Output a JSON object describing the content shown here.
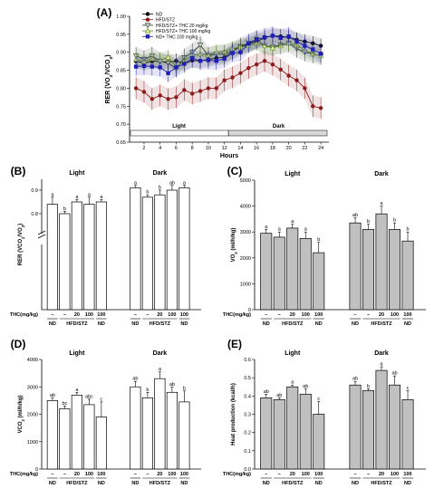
{
  "chart_data": [
    {
      "panel": "(A)",
      "type": "line",
      "xlabel": "Hours",
      "ylabel": "RER (VO2/VCO2)",
      "ylim": [
        0.65,
        1.0
      ],
      "yticks": [
        "0.65",
        "0.70",
        "0.75",
        "0.80",
        "0.85",
        "0.90",
        "0.95",
        "1.00"
      ],
      "xticks": [
        2,
        4,
        6,
        8,
        10,
        12,
        14,
        16,
        18,
        20,
        22,
        24
      ],
      "x": [
        1,
        2,
        3,
        4,
        5,
        6,
        7,
        8,
        9,
        10,
        11,
        12,
        13,
        14,
        15,
        16,
        17,
        18,
        19,
        20,
        21,
        22,
        23,
        24
      ],
      "bands": {
        "light": "Light",
        "dark": "Dark"
      },
      "legend_position": "top-left",
      "series": [
        {
          "name": "ND",
          "color": "#000000",
          "marker": "circle",
          "values": [
            0.875,
            0.87,
            0.875,
            0.875,
            0.872,
            0.876,
            0.868,
            0.877,
            0.876,
            0.88,
            0.884,
            0.886,
            0.902,
            0.916,
            0.922,
            0.93,
            0.94,
            0.946,
            0.944,
            0.942,
            0.935,
            0.93,
            0.925,
            0.918
          ],
          "errors": [
            0.02,
            0.02,
            0.02,
            0.02,
            0.02,
            0.02,
            0.02,
            0.02,
            0.02,
            0.02,
            0.02,
            0.02,
            0.02,
            0.02,
            0.02,
            0.02,
            0.02,
            0.02,
            0.02,
            0.02,
            0.02,
            0.02,
            0.02,
            0.02
          ]
        },
        {
          "name": "HFD/STZ",
          "color": "#8b1a1a",
          "marker": "circle",
          "values": [
            0.8,
            0.79,
            0.77,
            0.78,
            0.77,
            0.775,
            0.795,
            0.785,
            0.792,
            0.8,
            0.8,
            0.822,
            0.83,
            0.842,
            0.856,
            0.866,
            0.876,
            0.866,
            0.852,
            0.835,
            0.822,
            0.8,
            0.75,
            0.745
          ],
          "errors": [
            0.03,
            0.03,
            0.03,
            0.03,
            0.03,
            0.03,
            0.03,
            0.03,
            0.03,
            0.03,
            0.03,
            0.03,
            0.03,
            0.03,
            0.03,
            0.03,
            0.03,
            0.03,
            0.03,
            0.03,
            0.03,
            0.03,
            0.03,
            0.03
          ]
        },
        {
          "name": "HFD/STZ+ THC 20 mg/kg",
          "color": "#333333",
          "marker": "triangle-down",
          "values": [
            0.89,
            0.88,
            0.89,
            0.875,
            0.87,
            0.855,
            0.885,
            0.9,
            0.92,
            0.89,
            0.895,
            0.895,
            0.904,
            0.916,
            0.926,
            0.936,
            0.918,
            0.916,
            0.92,
            0.925,
            0.91,
            0.9,
            0.895,
            0.89
          ],
          "errors": [
            0.025,
            0.025,
            0.025,
            0.025,
            0.025,
            0.025,
            0.025,
            0.025,
            0.025,
            0.025,
            0.025,
            0.025,
            0.025,
            0.025,
            0.025,
            0.025,
            0.025,
            0.025,
            0.025,
            0.025,
            0.025,
            0.025,
            0.025,
            0.025
          ]
        },
        {
          "name": "HFD/STZ+ THC 100 mg/kg",
          "color": "#5a8a1f",
          "marker": "triangle-up",
          "values": [
            0.88,
            0.874,
            0.882,
            0.878,
            0.886,
            0.86,
            0.876,
            0.892,
            0.895,
            0.892,
            0.9,
            0.902,
            0.91,
            0.915,
            0.918,
            0.925,
            0.918,
            0.912,
            0.918,
            0.925,
            0.92,
            0.905,
            0.895,
            0.89
          ],
          "errors": [
            0.02,
            0.02,
            0.02,
            0.02,
            0.02,
            0.02,
            0.02,
            0.02,
            0.02,
            0.02,
            0.02,
            0.02,
            0.02,
            0.02,
            0.02,
            0.02,
            0.02,
            0.02,
            0.02,
            0.02,
            0.02,
            0.02,
            0.02,
            0.02
          ]
        },
        {
          "name": "ND+ THC 100 mg/kg",
          "color": "#1f1fb4",
          "marker": "square",
          "values": [
            0.86,
            0.862,
            0.86,
            0.858,
            0.842,
            0.858,
            0.868,
            0.884,
            0.876,
            0.878,
            0.876,
            0.882,
            0.898,
            0.9,
            0.924,
            0.935,
            0.942,
            0.946,
            0.94,
            0.944,
            0.93,
            0.918,
            0.908,
            0.896
          ],
          "errors": [
            0.025,
            0.025,
            0.025,
            0.025,
            0.025,
            0.025,
            0.025,
            0.025,
            0.025,
            0.025,
            0.025,
            0.025,
            0.025,
            0.025,
            0.025,
            0.025,
            0.025,
            0.025,
            0.025,
            0.025,
            0.025,
            0.025,
            0.025,
            0.025
          ]
        }
      ]
    },
    {
      "panel": "(B)",
      "type": "bar",
      "ylabel": "RER (VCO2/VO2)",
      "ylim": [
        0,
        1.0
      ],
      "axis_break": true,
      "yticks": [
        "0.8",
        "0.9"
      ],
      "groups": [
        {
          "name": "Light",
          "values": [
            0.84,
            0.8,
            0.85,
            0.84,
            0.85
          ],
          "errors": [
            0.03,
            0.01,
            0.01,
            0.03,
            0.01
          ],
          "letters": [
            "a",
            "b",
            "a",
            "a",
            "a"
          ]
        },
        {
          "name": "Dark",
          "values": [
            0.91,
            0.87,
            0.88,
            0.9,
            0.91
          ],
          "errors": [
            0.01,
            0.01,
            0.02,
            0.02,
            0.01
          ],
          "letters": [
            "a",
            "b",
            "b",
            "ab",
            "a"
          ]
        }
      ],
      "x_axis_label": "THC(mg/kg)",
      "doses": [
        "–",
        "–",
        "20",
        "100",
        "100"
      ],
      "group_labels": [
        "ND",
        "HFD/STZ",
        "ND"
      ],
      "bar_color": "#ffffff"
    },
    {
      "panel": "(C)",
      "type": "bar",
      "ylabel": "VO2 (ml/h/kg)",
      "ylim": [
        0,
        5000
      ],
      "yticks": [
        "0",
        "1000",
        "2000",
        "3000",
        "4000",
        "5000"
      ],
      "groups": [
        {
          "name": "Light",
          "values": [
            2950,
            2800,
            3150,
            2750,
            2200
          ],
          "errors": [
            150,
            200,
            150,
            250,
            400
          ],
          "letters": [
            "a",
            "a",
            "a",
            "a",
            "b"
          ]
        },
        {
          "name": "Dark",
          "values": [
            3350,
            3100,
            3700,
            3100,
            2650
          ],
          "errors": [
            200,
            200,
            300,
            250,
            350
          ],
          "letters": [
            "ab",
            "b",
            "a",
            "b",
            "b"
          ]
        }
      ],
      "x_axis_label": "THC(mg/kg)",
      "doses": [
        "–",
        "–",
        "20",
        "100",
        "100"
      ],
      "group_labels": [
        "ND",
        "HFD/STZ",
        "ND"
      ],
      "bar_color": "#c0c0c0"
    },
    {
      "panel": "(D)",
      "type": "bar",
      "ylabel": "VCO2 (ml/h/kg)",
      "ylim": [
        0,
        4000
      ],
      "yticks": [
        "0",
        "1000",
        "2000",
        "3000",
        "4000"
      ],
      "groups": [
        {
          "name": "Light",
          "values": [
            2500,
            2200,
            2700,
            2350,
            1900
          ],
          "errors": [
            100,
            100,
            100,
            200,
            550
          ],
          "letters": [
            "ab",
            "bc",
            "a",
            "abc",
            "c"
          ]
        },
        {
          "name": "Dark",
          "values": [
            3000,
            2600,
            3300,
            2800,
            2450
          ],
          "errors": [
            200,
            200,
            250,
            200,
            400
          ],
          "letters": [
            "ab",
            "b",
            "a",
            "ab",
            "b"
          ]
        }
      ],
      "x_axis_label": "THC(mg/kg)",
      "doses": [
        "–",
        "–",
        "20",
        "100",
        "100"
      ],
      "group_labels": [
        "ND",
        "HFD/STZ",
        "ND"
      ],
      "bar_color": "#ffffff"
    },
    {
      "panel": "(E)",
      "type": "bar",
      "ylabel": "Heat production (kcal/h)",
      "ylim": [
        0,
        0.6
      ],
      "yticks": [
        "0.0",
        "0.1",
        "0.2",
        "0.3",
        "0.4",
        "0.5",
        "0.6"
      ],
      "groups": [
        {
          "name": "Light",
          "values": [
            0.39,
            0.38,
            0.45,
            0.41,
            0.3
          ],
          "errors": [
            0.02,
            0.01,
            0.01,
            0.03,
            0.07
          ],
          "letters": [
            "ab",
            "ab",
            "a",
            "ab",
            "c"
          ]
        },
        {
          "name": "Dark",
          "values": [
            0.46,
            0.43,
            0.54,
            0.46,
            0.38
          ],
          "errors": [
            0.02,
            0.01,
            0.02,
            0.05,
            0.05
          ],
          "letters": [
            "ab",
            "b",
            "a",
            "ab",
            "c"
          ]
        }
      ],
      "x_axis_label": "THC(mg/kg)",
      "doses": [
        "–",
        "–",
        "20",
        "100",
        "100"
      ],
      "group_labels": [
        "ND",
        "HFD/STZ",
        "ND"
      ],
      "bar_color": "#c0c0c0"
    }
  ]
}
